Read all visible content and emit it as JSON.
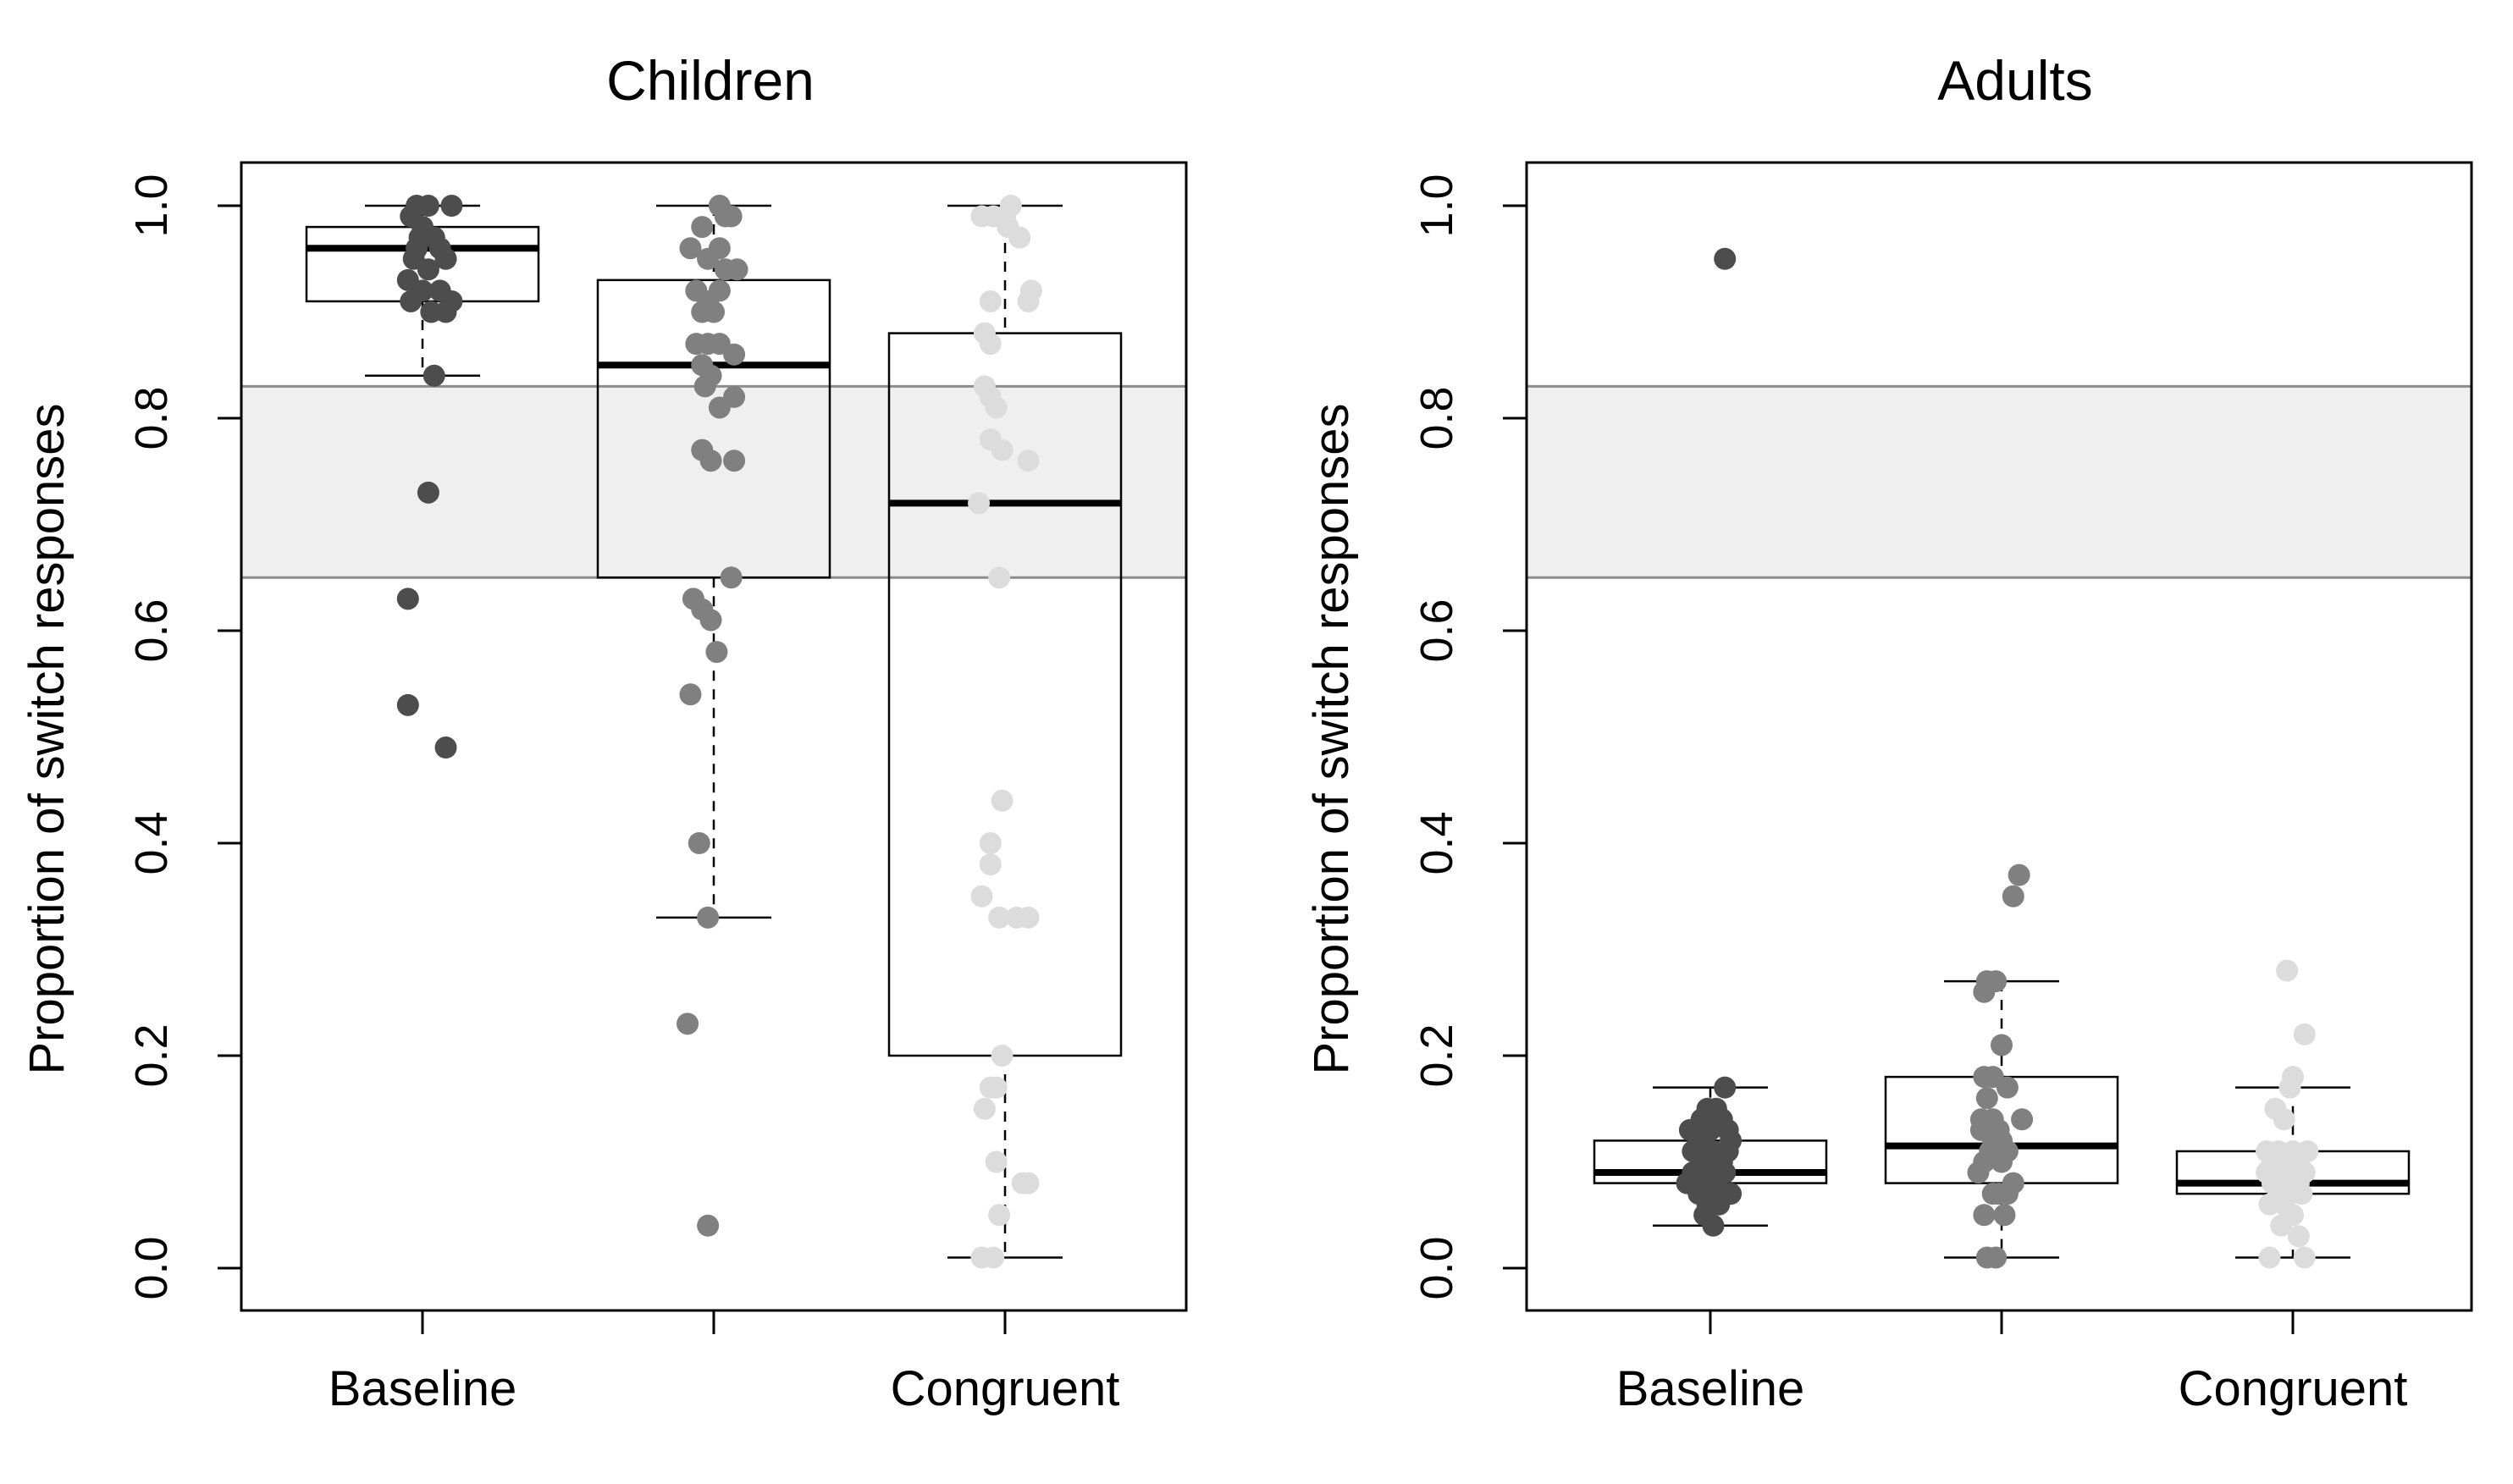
{
  "chart_data": [
    {
      "type": "box",
      "title": "Children",
      "xlabel": "",
      "ylabel": "Proportion of switch responses",
      "ylim": [
        0,
        1
      ],
      "yticks": [
        "0.0",
        "0.2",
        "0.4",
        "0.6",
        "0.8",
        "1.0"
      ],
      "categories": [
        "Baseline",
        "",
        "Congruent"
      ],
      "reference_band": [
        0.65,
        0.83
      ],
      "grid": false,
      "colors": {
        "series": [
          "#4d4d4d",
          "#808080",
          "#dcdcdc"
        ],
        "band": "#efefef",
        "band_line": "#8c8c8c"
      },
      "series": [
        {
          "stats": {
            "whisker_low": 0.84,
            "q1": 0.91,
            "median": 0.96,
            "q3": 0.98,
            "whisker_high": 1.0
          },
          "points": [
            [
              0.98,
              1.0
            ],
            [
              1.02,
              1.0
            ],
            [
              1.1,
              1.0
            ],
            [
              0.96,
              0.99
            ],
            [
              1.0,
              0.98
            ],
            [
              1.04,
              0.97
            ],
            [
              0.99,
              0.97
            ],
            [
              1.06,
              0.96
            ],
            [
              0.98,
              0.96
            ],
            [
              1.08,
              0.95
            ],
            [
              0.97,
              0.95
            ],
            [
              1.02,
              0.94
            ],
            [
              0.95,
              0.93
            ],
            [
              1.06,
              0.92
            ],
            [
              1.0,
              0.92
            ],
            [
              1.1,
              0.91
            ],
            [
              0.96,
              0.91
            ],
            [
              1.03,
              0.9
            ],
            [
              1.08,
              0.9
            ],
            [
              1.04,
              0.84
            ],
            [
              1.02,
              0.73
            ],
            [
              0.95,
              0.63
            ],
            [
              0.95,
              0.53
            ],
            [
              1.08,
              0.49
            ]
          ]
        },
        {
          "stats": {
            "whisker_low": 0.33,
            "q1": 0.65,
            "median": 0.85,
            "q3": 0.93,
            "whisker_high": 1.0
          },
          "points": [
            [
              2.02,
              1.0
            ],
            [
              2.04,
              0.99
            ],
            [
              2.06,
              0.99
            ],
            [
              1.96,
              0.98
            ],
            [
              2.02,
              0.96
            ],
            [
              1.92,
              0.96
            ],
            [
              1.98,
              0.95
            ],
            [
              2.08,
              0.94
            ],
            [
              2.04,
              0.94
            ],
            [
              1.94,
              0.92
            ],
            [
              2.02,
              0.92
            ],
            [
              1.98,
              0.91
            ],
            [
              1.96,
              0.9
            ],
            [
              2.0,
              0.9
            ],
            [
              1.94,
              0.87
            ],
            [
              1.98,
              0.87
            ],
            [
              2.02,
              0.87
            ],
            [
              2.07,
              0.86
            ],
            [
              1.96,
              0.85
            ],
            [
              1.99,
              0.84
            ],
            [
              1.97,
              0.83
            ],
            [
              2.07,
              0.82
            ],
            [
              2.02,
              0.81
            ],
            [
              1.96,
              0.77
            ],
            [
              1.99,
              0.76
            ],
            [
              2.07,
              0.76
            ],
            [
              2.06,
              0.65
            ],
            [
              1.93,
              0.63
            ],
            [
              1.96,
              0.62
            ],
            [
              1.99,
              0.61
            ],
            [
              2.01,
              0.58
            ],
            [
              1.92,
              0.54
            ],
            [
              1.95,
              0.4
            ],
            [
              1.98,
              0.33
            ],
            [
              1.91,
              0.23
            ],
            [
              1.98,
              0.04
            ]
          ]
        },
        {
          "stats": {
            "whisker_low": 0.01,
            "q1": 0.2,
            "median": 0.72,
            "q3": 0.88,
            "whisker_high": 1.0
          },
          "points": [
            [
              3.02,
              1.0
            ],
            [
              2.92,
              0.99
            ],
            [
              2.96,
              0.99
            ],
            [
              3.0,
              0.99
            ],
            [
              3.01,
              0.98
            ],
            [
              3.05,
              0.97
            ],
            [
              3.09,
              0.92
            ],
            [
              3.08,
              0.91
            ],
            [
              2.95,
              0.91
            ],
            [
              2.93,
              0.88
            ],
            [
              2.95,
              0.87
            ],
            [
              2.93,
              0.83
            ],
            [
              2.95,
              0.82
            ],
            [
              2.97,
              0.81
            ],
            [
              2.95,
              0.78
            ],
            [
              2.99,
              0.77
            ],
            [
              3.08,
              0.76
            ],
            [
              2.91,
              0.72
            ],
            [
              2.98,
              0.65
            ],
            [
              2.99,
              0.44
            ],
            [
              2.95,
              0.4
            ],
            [
              2.95,
              0.38
            ],
            [
              2.92,
              0.35
            ],
            [
              2.98,
              0.33
            ],
            [
              3.04,
              0.33
            ],
            [
              3.08,
              0.33
            ],
            [
              2.99,
              0.2
            ],
            [
              2.97,
              0.17
            ],
            [
              2.95,
              0.17
            ],
            [
              2.93,
              0.15
            ],
            [
              2.97,
              0.1
            ],
            [
              3.06,
              0.08
            ],
            [
              3.08,
              0.08
            ],
            [
              2.98,
              0.05
            ],
            [
              2.92,
              0.01
            ],
            [
              2.96,
              0.01
            ]
          ]
        }
      ]
    },
    {
      "type": "box",
      "title": "Adults",
      "xlabel": "",
      "ylabel": "Proportion of switch responses",
      "ylim": [
        0,
        1
      ],
      "yticks": [
        "0.0",
        "0.2",
        "0.4",
        "0.6",
        "0.8",
        "1.0"
      ],
      "categories": [
        "Baseline",
        "",
        "Congruent"
      ],
      "reference_band": [
        0.65,
        0.83
      ],
      "grid": false,
      "colors": {
        "series": [
          "#4d4d4d",
          "#808080",
          "#dcdcdc"
        ],
        "band": "#efefef",
        "band_line": "#8c8c8c"
      },
      "series": [
        {
          "stats": {
            "whisker_low": 0.04,
            "q1": 0.08,
            "median": 0.09,
            "q3": 0.12,
            "whisker_high": 0.17
          },
          "points": [
            [
              1.05,
              0.95
            ],
            [
              1.05,
              0.17
            ],
            [
              0.99,
              0.15
            ],
            [
              1.02,
              0.15
            ],
            [
              0.97,
              0.14
            ],
            [
              1.04,
              0.14
            ],
            [
              0.93,
              0.13
            ],
            [
              1.0,
              0.13
            ],
            [
              1.06,
              0.13
            ],
            [
              0.96,
              0.12
            ],
            [
              1.07,
              0.12
            ],
            [
              0.94,
              0.11
            ],
            [
              1.01,
              0.11
            ],
            [
              1.06,
              0.11
            ],
            [
              0.98,
              0.1
            ],
            [
              1.04,
              0.1
            ],
            [
              0.94,
              0.09
            ],
            [
              1.0,
              0.09
            ],
            [
              1.05,
              0.09
            ],
            [
              0.92,
              0.08
            ],
            [
              0.97,
              0.08
            ],
            [
              1.02,
              0.08
            ],
            [
              1.07,
              0.07
            ],
            [
              0.96,
              0.07
            ],
            [
              1.01,
              0.07
            ],
            [
              0.99,
              0.06
            ],
            [
              1.03,
              0.06
            ],
            [
              0.98,
              0.05
            ],
            [
              1.01,
              0.04
            ]
          ]
        },
        {
          "stats": {
            "whisker_low": 0.01,
            "q1": 0.08,
            "median": 0.115,
            "q3": 0.18,
            "whisker_high": 0.27
          },
          "points": [
            [
              2.06,
              0.37
            ],
            [
              2.04,
              0.35
            ],
            [
              1.95,
              0.27
            ],
            [
              1.98,
              0.27
            ],
            [
              1.94,
              0.26
            ],
            [
              2.0,
              0.21
            ],
            [
              1.94,
              0.18
            ],
            [
              1.97,
              0.18
            ],
            [
              2.02,
              0.17
            ],
            [
              1.95,
              0.16
            ],
            [
              1.93,
              0.14
            ],
            [
              1.97,
              0.14
            ],
            [
              2.07,
              0.14
            ],
            [
              1.93,
              0.13
            ],
            [
              1.99,
              0.13
            ],
            [
              1.97,
              0.12
            ],
            [
              2.0,
              0.12
            ],
            [
              1.96,
              0.11
            ],
            [
              2.02,
              0.11
            ],
            [
              1.94,
              0.1
            ],
            [
              2.0,
              0.1
            ],
            [
              1.92,
              0.09
            ],
            [
              2.04,
              0.08
            ],
            [
              1.97,
              0.07
            ],
            [
              1.99,
              0.07
            ],
            [
              2.02,
              0.07
            ],
            [
              1.94,
              0.05
            ],
            [
              2.01,
              0.05
            ],
            [
              1.95,
              0.01
            ],
            [
              1.98,
              0.01
            ]
          ]
        },
        {
          "stats": {
            "whisker_low": 0.01,
            "q1": 0.07,
            "median": 0.08,
            "q3": 0.11,
            "whisker_high": 0.17
          },
          "points": [
            [
              2.98,
              0.28
            ],
            [
              3.04,
              0.22
            ],
            [
              3.0,
              0.18
            ],
            [
              2.99,
              0.17
            ],
            [
              2.94,
              0.15
            ],
            [
              2.97,
              0.14
            ],
            [
              2.91,
              0.11
            ],
            [
              2.95,
              0.11
            ],
            [
              3.0,
              0.11
            ],
            [
              3.05,
              0.11
            ],
            [
              2.93,
              0.1
            ],
            [
              2.97,
              0.1
            ],
            [
              3.02,
              0.1
            ],
            [
              2.91,
              0.09
            ],
            [
              2.96,
              0.09
            ],
            [
              3.0,
              0.09
            ],
            [
              3.04,
              0.09
            ],
            [
              2.93,
              0.08
            ],
            [
              2.98,
              0.08
            ],
            [
              3.02,
              0.08
            ],
            [
              2.95,
              0.07
            ],
            [
              2.99,
              0.07
            ],
            [
              3.03,
              0.07
            ],
            [
              2.92,
              0.06
            ],
            [
              2.97,
              0.06
            ],
            [
              3.0,
              0.05
            ],
            [
              2.96,
              0.04
            ],
            [
              3.02,
              0.03
            ],
            [
              2.92,
              0.01
            ],
            [
              3.04,
              0.01
            ]
          ]
        }
      ]
    }
  ]
}
